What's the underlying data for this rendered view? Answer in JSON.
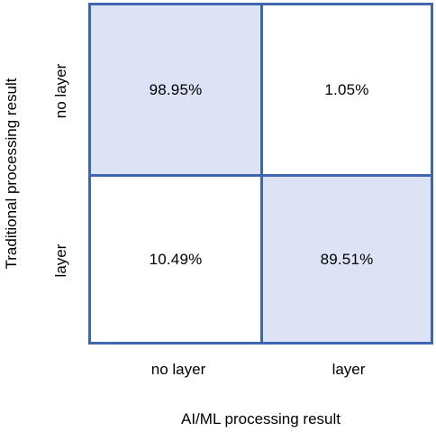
{
  "chart_data": {
    "type": "heatmap",
    "title": "",
    "xlabel": "AI/ML processing result",
    "ylabel": "Traditional processing result",
    "x_categories": [
      "no layer",
      "layer"
    ],
    "y_categories": [
      "no layer",
      "layer"
    ],
    "values": [
      [
        98.95,
        1.05
      ],
      [
        10.49,
        89.51
      ]
    ],
    "labels": [
      [
        "98.95%",
        "1.05%"
      ],
      [
        "10.49%",
        "89.51%"
      ]
    ],
    "colors": {
      "highlight": "#dde3f4",
      "plain": "#ffffff",
      "border": "#3f67b1"
    },
    "grid": true,
    "legend": "none"
  }
}
